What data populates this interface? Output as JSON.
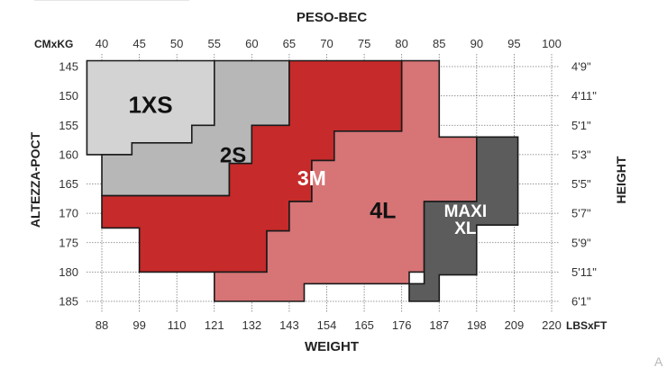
{
  "chart_data": {
    "type": "heatmap",
    "title": "PESO-BEC",
    "xlabel": "WEIGHT",
    "ylabel_left": "ALTEZZA-POCT",
    "ylabel_right": "HEIGHT",
    "top_axis_unit": "CMxKG",
    "bottom_axis_unit": "LBSxFT",
    "kg_ticks": [
      "40",
      "45",
      "50",
      "55",
      "60",
      "65",
      "70",
      "75",
      "80",
      "85",
      "90",
      "95",
      "100"
    ],
    "lbs_ticks": [
      "88",
      "99",
      "110",
      "121",
      "132",
      "143",
      "154",
      "165",
      "176",
      "187",
      "198",
      "209",
      "220"
    ],
    "cm_ticks": [
      "145",
      "150",
      "155",
      "160",
      "165",
      "170",
      "175",
      "180",
      "185"
    ],
    "ft_ticks": [
      "4'9\"",
      "4'11\"",
      "5'1\"",
      "5'3\"",
      "5'5\"",
      "5'7\"",
      "5'9\"",
      "5'11\"",
      "6'1\""
    ],
    "x_unit": "kg",
    "y_unit": "cm",
    "xlim": [
      40,
      100
    ],
    "ylim": [
      145,
      185
    ],
    "sizes": [
      {
        "label": "1XS",
        "color": "#d3d3d3",
        "text_color": "#111111",
        "points": [
          [
            38,
            144
          ],
          [
            55,
            144
          ],
          [
            55,
            155
          ],
          [
            52,
            155
          ],
          [
            52,
            158
          ],
          [
            44,
            158
          ],
          [
            44,
            160
          ],
          [
            38,
            160
          ]
        ]
      },
      {
        "label": "2S",
        "color": "#b7b7b7",
        "text_color": "#111111",
        "points": [
          [
            55,
            144
          ],
          [
            65,
            144
          ],
          [
            65,
            155
          ],
          [
            60,
            155
          ],
          [
            60,
            161.5
          ],
          [
            57,
            161.5
          ],
          [
            57,
            167
          ],
          [
            40,
            167
          ],
          [
            40,
            160
          ],
          [
            44,
            160
          ],
          [
            44,
            158
          ],
          [
            52,
            158
          ],
          [
            52,
            155
          ],
          [
            55,
            155
          ]
        ]
      },
      {
        "label": "3M",
        "color": "#c62a2a",
        "text_color": "#ffffff",
        "points": [
          [
            65,
            144
          ],
          [
            80,
            144
          ],
          [
            80,
            156
          ],
          [
            71,
            156
          ],
          [
            71,
            161
          ],
          [
            68,
            161
          ],
          [
            68,
            168
          ],
          [
            65,
            168
          ],
          [
            65,
            173
          ],
          [
            62,
            173
          ],
          [
            62,
            180
          ],
          [
            45,
            180
          ],
          [
            45,
            172.5
          ],
          [
            40,
            172.5
          ],
          [
            40,
            167
          ],
          [
            57,
            167
          ],
          [
            57,
            161.5
          ],
          [
            60,
            161.5
          ],
          [
            60,
            155
          ],
          [
            65,
            155
          ]
        ]
      },
      {
        "label": "4L",
        "color": "#d77476",
        "text_color": "#111111",
        "points": [
          [
            80,
            144
          ],
          [
            85,
            144
          ],
          [
            85,
            157
          ],
          [
            90,
            157
          ],
          [
            90,
            168
          ],
          [
            83,
            168
          ],
          [
            83,
            180
          ],
          [
            81,
            180
          ],
          [
            81,
            182
          ],
          [
            67,
            182
          ],
          [
            67,
            185
          ],
          [
            55,
            185
          ],
          [
            55,
            180
          ],
          [
            62,
            180
          ],
          [
            62,
            173
          ],
          [
            65,
            173
          ],
          [
            65,
            168
          ],
          [
            68,
            168
          ],
          [
            68,
            161
          ],
          [
            71,
            161
          ],
          [
            71,
            156
          ],
          [
            80,
            156
          ]
        ]
      },
      {
        "label": "MAXI\nXL",
        "color": "#5c5c5c",
        "text_color": "#ffffff",
        "points": [
          [
            90,
            157
          ],
          [
            95.5,
            157
          ],
          [
            95.5,
            172
          ],
          [
            90,
            172
          ],
          [
            90,
            180.5
          ],
          [
            85,
            180.5
          ],
          [
            85,
            185
          ],
          [
            81,
            185
          ],
          [
            81,
            182
          ],
          [
            83,
            182
          ],
          [
            83,
            168
          ],
          [
            90,
            168
          ]
        ]
      }
    ],
    "grid": true
  }
}
